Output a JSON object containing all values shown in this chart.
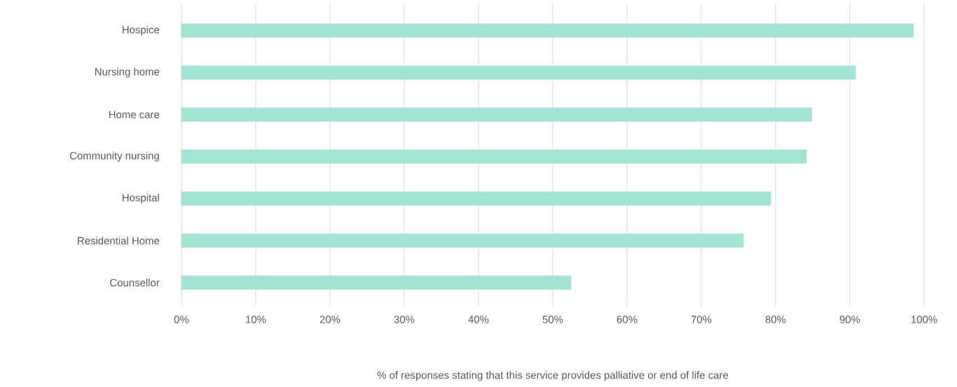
{
  "chart_data": {
    "type": "bar",
    "orientation": "horizontal",
    "categories": [
      "Hospice",
      "Nursing home",
      "Home care",
      "Community nursing",
      "Hospital",
      "Residential Home",
      "Counsellor"
    ],
    "values": [
      98.6,
      90.8,
      84.9,
      84.2,
      79.4,
      75.7,
      52.5
    ],
    "color": "#a3e3d1",
    "xlabel": "% of responses stating that this service provides palliative or end of life care",
    "xlim": [
      0,
      100
    ],
    "xticks": [
      {
        "value": 0,
        "label": "0%"
      },
      {
        "value": 10,
        "label": "10%"
      },
      {
        "value": 20,
        "label": "20%"
      },
      {
        "value": 30,
        "label": "30%"
      },
      {
        "value": 40,
        "label": "40%"
      },
      {
        "value": 50,
        "label": "50%"
      },
      {
        "value": 60,
        "label": "60%"
      },
      {
        "value": 70,
        "label": "70%"
      },
      {
        "value": 80,
        "label": "80%"
      },
      {
        "value": 90,
        "label": "90%"
      },
      {
        "value": 100,
        "label": "100%"
      }
    ],
    "grid": "x"
  }
}
